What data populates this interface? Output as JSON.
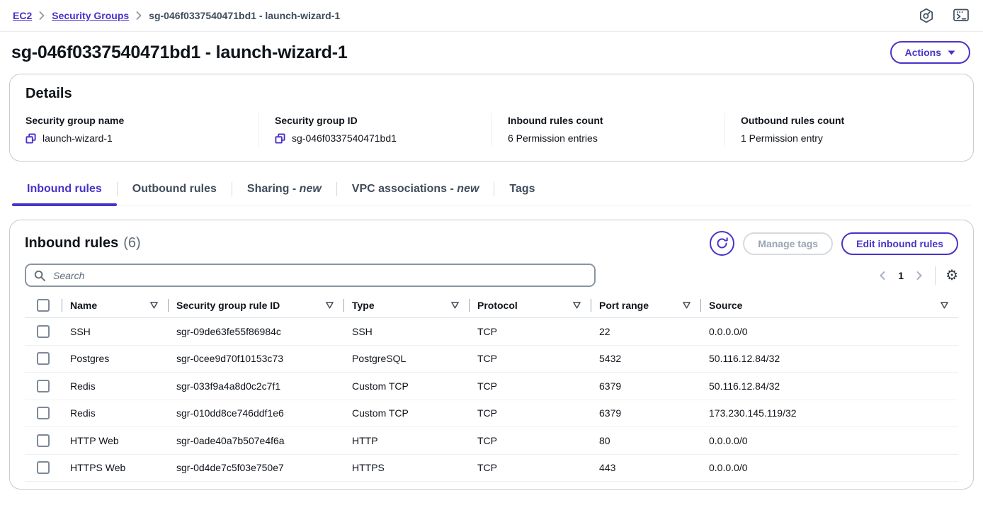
{
  "colors": {
    "accent": "#4733c9",
    "text": "#0f141a",
    "secondary": "#5f6b7a"
  },
  "breadcrumb": {
    "items": [
      {
        "label": "EC2",
        "link": true
      },
      {
        "label": "Security Groups",
        "link": true
      },
      {
        "label": "sg-046f0337540471bd1 - launch-wizard-1",
        "link": false
      }
    ],
    "separator_icon": "chevron-right-icon",
    "top_icons": [
      "amazon-q-icon",
      "cloudshell-icon"
    ]
  },
  "header": {
    "title": "sg-046f0337540471bd1 - launch-wizard-1",
    "actions_label": "Actions",
    "actions_caret_icon": "caret-down-icon"
  },
  "details": {
    "heading": "Details",
    "fields": [
      {
        "label": "Security group name",
        "value": "launch-wizard-1",
        "copyable": true,
        "copy_icon": "copy-icon"
      },
      {
        "label": "Security group ID",
        "value": "sg-046f0337540471bd1",
        "copyable": true,
        "copy_icon": "copy-icon"
      },
      {
        "label": "Inbound rules count",
        "value": "6 Permission entries",
        "copyable": false
      },
      {
        "label": "Outbound rules count",
        "value": "1 Permission entry",
        "copyable": false
      }
    ]
  },
  "tabs": [
    {
      "label": "Inbound rules",
      "suffix": "",
      "active": true
    },
    {
      "label": "Outbound rules",
      "suffix": "",
      "active": false
    },
    {
      "label": "Sharing -",
      "suffix": "new",
      "active": false
    },
    {
      "label": "VPC associations -",
      "suffix": "new",
      "active": false
    },
    {
      "label": "Tags",
      "suffix": "",
      "active": false
    }
  ],
  "inbound_panel": {
    "title": "Inbound rules",
    "count": "(6)",
    "refresh_icon": "refresh-icon",
    "manage_tags_label": "Manage tags",
    "edit_button_label": "Edit inbound rules",
    "search_icon": "search-icon",
    "search_placeholder": "Search",
    "search_value": "",
    "pagination": {
      "prev_icon": "chevron-left-icon",
      "page": "1",
      "next_icon": "chevron-right-icon"
    },
    "settings_icon": "gear-icon",
    "filter_icon": "filter-triangle-icon",
    "columns": [
      "Name",
      "Security group rule ID",
      "Type",
      "Protocol",
      "Port range",
      "Source"
    ],
    "rows": [
      {
        "name": "SSH",
        "rule_id": "sgr-09de63fe55f86984c",
        "type": "SSH",
        "protocol": "TCP",
        "port_range": "22",
        "source": "0.0.0.0/0"
      },
      {
        "name": "Postgres",
        "rule_id": "sgr-0cee9d70f10153c73",
        "type": "PostgreSQL",
        "protocol": "TCP",
        "port_range": "5432",
        "source": "50.116.12.84/32"
      },
      {
        "name": "Redis",
        "rule_id": "sgr-033f9a4a8d0c2c7f1",
        "type": "Custom TCP",
        "protocol": "TCP",
        "port_range": "6379",
        "source": "50.116.12.84/32"
      },
      {
        "name": "Redis",
        "rule_id": "sgr-010dd8ce746ddf1e6",
        "type": "Custom TCP",
        "protocol": "TCP",
        "port_range": "6379",
        "source": "173.230.145.119/32"
      },
      {
        "name": "HTTP Web",
        "rule_id": "sgr-0ade40a7b507e4f6a",
        "type": "HTTP",
        "protocol": "TCP",
        "port_range": "80",
        "source": "0.0.0.0/0"
      },
      {
        "name": "HTTPS Web",
        "rule_id": "sgr-0d4de7c5f03e750e7",
        "type": "HTTPS",
        "protocol": "TCP",
        "port_range": "443",
        "source": "0.0.0.0/0"
      }
    ]
  }
}
